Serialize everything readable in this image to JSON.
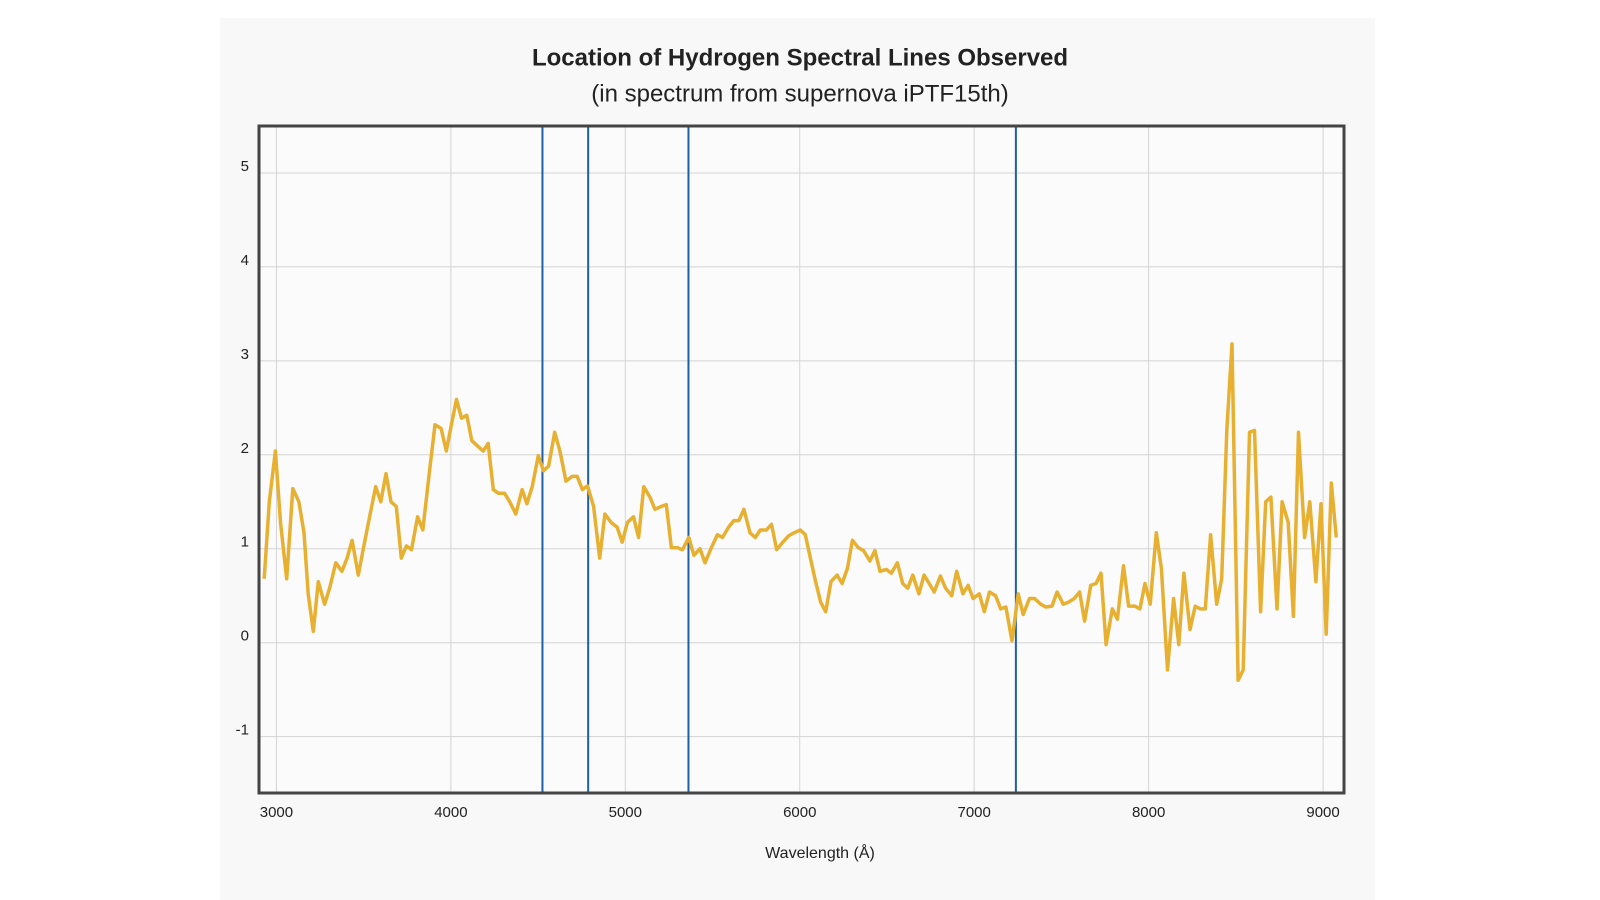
{
  "chart_data": {
    "type": "line",
    "title": "Location of Hydrogen Spectral Lines Observed",
    "subtitle": "(in spectrum from supernova iPTF15th)",
    "x_label": "Wavelength (Å)",
    "color": "#e8b030",
    "x": [
      2930,
      2959,
      2994,
      3023,
      3059,
      3094,
      3129,
      3158,
      3182,
      3211,
      3240,
      3276,
      3305,
      3340,
      3375,
      3405,
      3434,
      3469,
      3499,
      3534,
      3569,
      3598,
      3628,
      3657,
      3687,
      3716,
      3745,
      3774,
      3809,
      3839,
      3874,
      3909,
      3944,
      3974,
      4003,
      4032,
      4061,
      4091,
      4120,
      4155,
      4185,
      4214,
      4243,
      4273,
      4308,
      4337,
      4372,
      4408,
      4436,
      4466,
      4501,
      4531,
      4560,
      4595,
      4625,
      4660,
      4695,
      4724,
      4754,
      4783,
      4818,
      4853,
      4883,
      4918,
      4953,
      4982,
      5012,
      5047,
      5076,
      5106,
      5141,
      5170,
      5205,
      5235,
      5264,
      5299,
      5328,
      5364,
      5393,
      5428,
      5457,
      5493,
      5528,
      5557,
      5592,
      5622,
      5651,
      5680,
      5715,
      5745,
      5774,
      5809,
      5838,
      5868,
      5903,
      5938,
      5967,
      6003,
      6032,
      6061,
      6091,
      6120,
      6149,
      6179,
      6214,
      6243,
      6273,
      6302,
      6337,
      6366,
      6402,
      6431,
      6460,
      6496,
      6525,
      6560,
      6590,
      6619,
      6648,
      6683,
      6713,
      6742,
      6771,
      6806,
      6836,
      6871,
      6900,
      6935,
      6965,
      6994,
      7029,
      7058,
      7088,
      7123,
      7152,
      7182,
      7217,
      7252,
      7281,
      7317,
      7346,
      7381,
      7410,
      7446,
      7475,
      7510,
      7539,
      7574,
      7604,
      7633,
      7668,
      7698,
      7727,
      7756,
      7792,
      7821,
      7856,
      7885,
      7921,
      7950,
      7979,
      8009,
      8044,
      8073,
      8108,
      8143,
      8173,
      8202,
      8237,
      8267,
      8296,
      8325,
      8355,
      8390,
      8419,
      8448,
      8478,
      8513,
      8542,
      8578,
      8607,
      8642,
      8671,
      8701,
      8736,
      8765,
      8800,
      8830,
      8859,
      8894,
      8924,
      8959,
      8988,
      9018,
      9047,
      9076
    ],
    "values": [
      0.68,
      1.5,
      2.04,
      1.28,
      0.68,
      1.64,
      1.5,
      1.17,
      0.52,
      0.12,
      0.65,
      0.41,
      0.58,
      0.85,
      0.76,
      0.9,
      1.09,
      0.72,
      1.01,
      1.34,
      1.66,
      1.5,
      1.8,
      1.5,
      1.45,
      0.9,
      1.03,
      0.99,
      1.34,
      1.2,
      1.77,
      2.32,
      2.28,
      2.04,
      2.32,
      2.59,
      2.39,
      2.42,
      2.15,
      2.09,
      2.04,
      2.12,
      1.63,
      1.59,
      1.59,
      1.5,
      1.37,
      1.63,
      1.48,
      1.66,
      1.99,
      1.83,
      1.88,
      2.24,
      2.04,
      1.72,
      1.77,
      1.77,
      1.63,
      1.67,
      1.45,
      0.9,
      1.37,
      1.28,
      1.23,
      1.07,
      1.28,
      1.34,
      1.12,
      1.66,
      1.55,
      1.42,
      1.45,
      1.47,
      1.01,
      1.01,
      0.99,
      1.12,
      0.93,
      1.0,
      0.85,
      1.01,
      1.15,
      1.12,
      1.23,
      1.3,
      1.3,
      1.42,
      1.17,
      1.12,
      1.2,
      1.2,
      1.26,
      0.99,
      1.07,
      1.14,
      1.17,
      1.2,
      1.15,
      0.9,
      0.65,
      0.43,
      0.33,
      0.65,
      0.72,
      0.63,
      0.79,
      1.09,
      1.01,
      0.98,
      0.87,
      0.98,
      0.76,
      0.78,
      0.74,
      0.85,
      0.63,
      0.58,
      0.72,
      0.52,
      0.72,
      0.63,
      0.54,
      0.71,
      0.58,
      0.5,
      0.76,
      0.52,
      0.61,
      0.47,
      0.52,
      0.33,
      0.54,
      0.5,
      0.36,
      0.38,
      0.02,
      0.52,
      0.3,
      0.47,
      0.47,
      0.41,
      0.38,
      0.39,
      0.54,
      0.41,
      0.43,
      0.47,
      0.54,
      0.23,
      0.61,
      0.63,
      0.74,
      -0.02,
      0.36,
      0.25,
      0.82,
      0.39,
      0.39,
      0.36,
      0.63,
      0.41,
      1.17,
      0.79,
      -0.29,
      0.47,
      -0.02,
      0.74,
      0.14,
      0.39,
      0.36,
      0.36,
      1.15,
      0.41,
      0.68,
      2.26,
      3.18,
      -0.4,
      -0.29,
      2.24,
      2.26,
      0.33,
      1.5,
      1.55,
      0.36,
      1.5,
      1.28,
      0.28,
      2.24,
      1.12,
      1.5,
      0.65,
      1.48,
      0.09,
      1.7,
      1.12
    ],
    "vlines": {
      "color": "#1f5fa8",
      "values": [
        4525,
        4787,
        5362,
        7239
      ]
    },
    "xlim": [
      2900,
      9120
    ],
    "ylim": [
      -1.6,
      5.5
    ],
    "xticks": [
      3000,
      4000,
      5000,
      6000,
      7000,
      8000,
      9000
    ],
    "yticks": [
      -1,
      0,
      1,
      2,
      3,
      4,
      5
    ],
    "grid": true
  }
}
